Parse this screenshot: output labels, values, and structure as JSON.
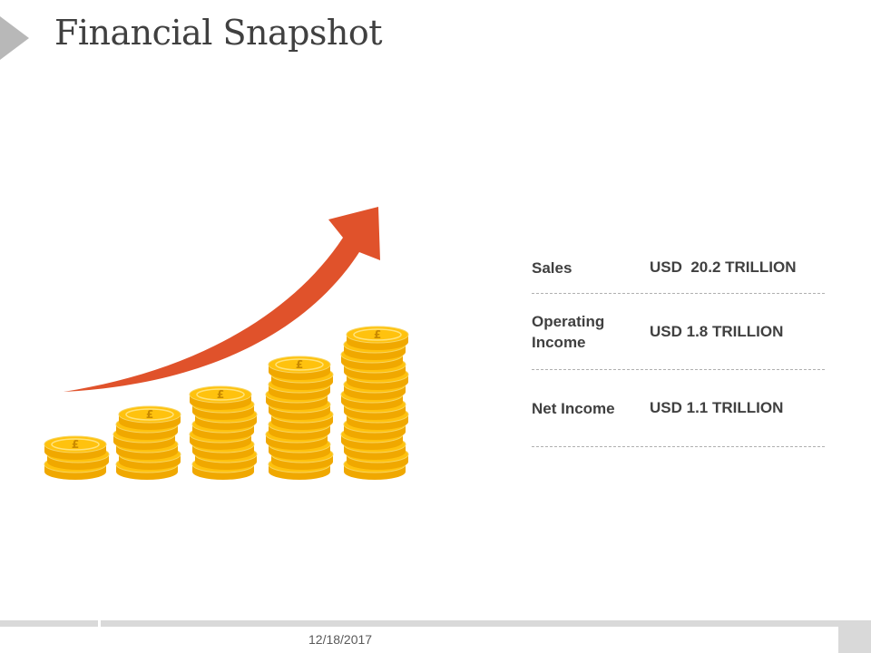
{
  "slide": {
    "title": "Financial Snapshot",
    "date": "12/18/2017"
  },
  "illustration": {
    "arrow_color": "#e0522b",
    "coin_color": "#ffc20e",
    "coin_symbol": "£"
  },
  "metrics": [
    {
      "label": "Sales",
      "value": "USD  20.2 TRILLION"
    },
    {
      "label": "Operating Income",
      "value": "USD 1.8 TRILLION"
    },
    {
      "label": "Net Income",
      "value": "USD 1.1 TRILLION"
    }
  ]
}
